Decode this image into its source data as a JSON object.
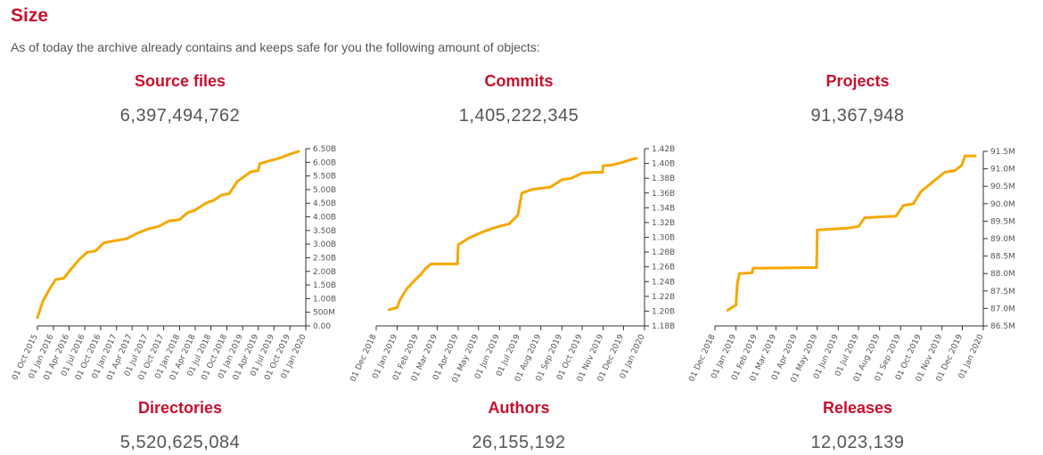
{
  "heading": "Size",
  "intro": "As of today the archive already contains and keeps safe for you the following amount of objects:",
  "colors": {
    "accent": "#c8102e",
    "line": "#f5a800",
    "text": "#555555"
  },
  "stats": [
    {
      "label": "Source files",
      "value": "6,397,494,762"
    },
    {
      "label": "Commits",
      "value": "1,405,222,345"
    },
    {
      "label": "Projects",
      "value": "91,367,948"
    },
    {
      "label": "Directories",
      "value": "5,520,625,084"
    },
    {
      "label": "Authors",
      "value": "26,155,192"
    },
    {
      "label": "Releases",
      "value": "12,023,139"
    }
  ],
  "chart_data": [
    {
      "type": "line",
      "title": "Source files",
      "xlim": [
        "2015-10-01",
        "2020-01-01"
      ],
      "ylim": [
        0,
        6500000000
      ],
      "x_ticks": [
        "01 Oct 2015",
        "01 Jan 2016",
        "01 Apr 2016",
        "01 Jul 2016",
        "01 Oct 2016",
        "01 Jan 2017",
        "01 Apr 2017",
        "01 Jul 2017",
        "01 Oct 2017",
        "01 Jan 2018",
        "01 Apr 2018",
        "01 Jul 2018",
        "01 Oct 2018",
        "01 Jan 2019",
        "01 Apr 2019",
        "01 Jul 2019",
        "01 Oct 2019",
        "01 Jan 2020"
      ],
      "y_ticks": [
        {
          "v": 0,
          "label": "0.00"
        },
        {
          "v": 500000000,
          "label": "500M"
        },
        {
          "v": 1000000000,
          "label": "1.00B"
        },
        {
          "v": 1500000000,
          "label": "1.50B"
        },
        {
          "v": 2000000000,
          "label": "2.00B"
        },
        {
          "v": 2500000000,
          "label": "2.50B"
        },
        {
          "v": 3000000000,
          "label": "3.00B"
        },
        {
          "v": 3500000000,
          "label": "3.50B"
        },
        {
          "v": 4000000000,
          "label": "4.00B"
        },
        {
          "v": 4500000000,
          "label": "4.50B"
        },
        {
          "v": 5000000000,
          "label": "5.00B"
        },
        {
          "v": 5500000000,
          "label": "5.50B"
        },
        {
          "v": 6000000000,
          "label": "6.00B"
        },
        {
          "v": 6500000000,
          "label": "6.50B"
        }
      ],
      "points": [
        [
          "2015-10-01",
          300000000
        ],
        [
          "2015-11-01",
          900000000
        ],
        [
          "2015-12-15",
          1400000000
        ],
        [
          "2016-01-15",
          1700000000
        ],
        [
          "2016-03-01",
          1750000000
        ],
        [
          "2016-04-15",
          2100000000
        ],
        [
          "2016-06-01",
          2450000000
        ],
        [
          "2016-07-15",
          2700000000
        ],
        [
          "2016-09-01",
          2750000000
        ],
        [
          "2016-10-20",
          3050000000
        ],
        [
          "2016-12-01",
          3100000000
        ],
        [
          "2017-03-01",
          3200000000
        ],
        [
          "2017-05-01",
          3400000000
        ],
        [
          "2017-07-01",
          3550000000
        ],
        [
          "2017-09-01",
          3650000000
        ],
        [
          "2017-11-01",
          3850000000
        ],
        [
          "2018-01-01",
          3900000000
        ],
        [
          "2018-02-15",
          4150000000
        ],
        [
          "2018-04-01",
          4250000000
        ],
        [
          "2018-06-01",
          4500000000
        ],
        [
          "2018-07-15",
          4600000000
        ],
        [
          "2018-09-01",
          4800000000
        ],
        [
          "2018-10-15",
          4850000000
        ],
        [
          "2018-12-01",
          5300000000
        ],
        [
          "2019-01-15",
          5500000000
        ],
        [
          "2019-02-15",
          5650000000
        ],
        [
          "2019-04-01",
          5700000000
        ],
        [
          "2019-04-10",
          5950000000
        ],
        [
          "2019-06-01",
          6050000000
        ],
        [
          "2019-08-01",
          6150000000
        ],
        [
          "2019-10-01",
          6300000000
        ],
        [
          "2019-11-20",
          6400000000
        ]
      ]
    },
    {
      "type": "line",
      "title": "Commits",
      "xlim": [
        "2018-12-01",
        "2020-01-01"
      ],
      "ylim": [
        1180000000,
        1420000000
      ],
      "x_ticks": [
        "01 Dec 2018",
        "01 Jan 2019",
        "01 Feb 2019",
        "01 Mar 2019",
        "01 Apr 2019",
        "01 May 2019",
        "01 Jun 2019",
        "01 Jul 2019",
        "01 Aug 2019",
        "01 Sep 2019",
        "01 Oct 2019",
        "01 Nov 2019",
        "01 Dec 2019",
        "01 Jan 2020"
      ],
      "y_ticks": [
        {
          "v": 1180000000,
          "label": "1.18B"
        },
        {
          "v": 1200000000,
          "label": "1.20B"
        },
        {
          "v": 1220000000,
          "label": "1.22B"
        },
        {
          "v": 1240000000,
          "label": "1.24B"
        },
        {
          "v": 1260000000,
          "label": "1.26B"
        },
        {
          "v": 1280000000,
          "label": "1.28B"
        },
        {
          "v": 1300000000,
          "label": "1.30B"
        },
        {
          "v": 1320000000,
          "label": "1.32B"
        },
        {
          "v": 1340000000,
          "label": "1.34B"
        },
        {
          "v": 1360000000,
          "label": "1.36B"
        },
        {
          "v": 1380000000,
          "label": "1.38B"
        },
        {
          "v": 1400000000,
          "label": "1.40B"
        },
        {
          "v": 1420000000,
          "label": "1.42B"
        }
      ],
      "points": [
        [
          "2018-12-20",
          1202000000
        ],
        [
          "2019-01-01",
          1205000000
        ],
        [
          "2019-01-05",
          1215000000
        ],
        [
          "2019-01-15",
          1230000000
        ],
        [
          "2019-01-25",
          1240000000
        ],
        [
          "2019-02-05",
          1250000000
        ],
        [
          "2019-02-12",
          1258000000
        ],
        [
          "2019-02-20",
          1264000000
        ],
        [
          "2019-03-31",
          1264000000
        ],
        [
          "2019-04-01",
          1290000000
        ],
        [
          "2019-04-15",
          1298000000
        ],
        [
          "2019-05-01",
          1305000000
        ],
        [
          "2019-05-15",
          1310000000
        ],
        [
          "2019-06-01",
          1315000000
        ],
        [
          "2019-06-15",
          1318000000
        ],
        [
          "2019-06-28",
          1330000000
        ],
        [
          "2019-07-04",
          1360000000
        ],
        [
          "2019-07-20",
          1365000000
        ],
        [
          "2019-08-15",
          1368000000
        ],
        [
          "2019-09-01",
          1378000000
        ],
        [
          "2019-09-15",
          1380000000
        ],
        [
          "2019-10-01",
          1387000000
        ],
        [
          "2019-10-20",
          1388000000
        ],
        [
          "2019-10-31",
          1388000000
        ],
        [
          "2019-11-01",
          1397000000
        ],
        [
          "2019-11-15",
          1398000000
        ],
        [
          "2019-12-01",
          1402000000
        ],
        [
          "2019-12-15",
          1406000000
        ],
        [
          "2019-12-20",
          1407000000
        ]
      ]
    },
    {
      "type": "line",
      "title": "Projects",
      "xlim": [
        "2018-12-01",
        "2020-01-01"
      ],
      "ylim": [
        86500000,
        91500000
      ],
      "x_ticks": [
        "01 Dec 2018",
        "01 Jan 2019",
        "01 Feb 2019",
        "01 Mar 2019",
        "01 Apr 2019",
        "01 May 2019",
        "01 Jun 2019",
        "01 Jul 2019",
        "01 Aug 2019",
        "01 Sep 2019",
        "01 Oct 2019",
        "01 Nov 2019",
        "01 Dec 2019",
        "01 Jan 2020"
      ],
      "y_ticks": [
        {
          "v": 86500000,
          "label": "86.5M"
        },
        {
          "v": 87000000,
          "label": "87.0M"
        },
        {
          "v": 87500000,
          "label": "87.5M"
        },
        {
          "v": 88000000,
          "label": "88.0M"
        },
        {
          "v": 88500000,
          "label": "88.5M"
        },
        {
          "v": 89000000,
          "label": "89.0M"
        },
        {
          "v": 89500000,
          "label": "89.5M"
        },
        {
          "v": 90000000,
          "label": "90.0M"
        },
        {
          "v": 90500000,
          "label": "90.5M"
        },
        {
          "v": 91000000,
          "label": "91.0M"
        },
        {
          "v": 91500000,
          "label": "91.5M"
        }
      ],
      "points": [
        [
          "2018-12-20",
          86950000
        ],
        [
          "2018-12-28",
          87050000
        ],
        [
          "2019-01-01",
          87100000
        ],
        [
          "2019-01-03",
          87700000
        ],
        [
          "2019-01-06",
          88000000
        ],
        [
          "2019-01-25",
          88020000
        ],
        [
          "2019-01-26",
          88150000
        ],
        [
          "2019-04-30",
          88170000
        ],
        [
          "2019-05-01",
          89250000
        ],
        [
          "2019-06-15",
          89300000
        ],
        [
          "2019-07-01",
          89350000
        ],
        [
          "2019-07-10",
          89600000
        ],
        [
          "2019-08-10",
          89630000
        ],
        [
          "2019-08-25",
          89640000
        ],
        [
          "2019-09-05",
          89950000
        ],
        [
          "2019-09-20",
          90000000
        ],
        [
          "2019-10-01",
          90350000
        ],
        [
          "2019-10-20",
          90650000
        ],
        [
          "2019-11-05",
          90900000
        ],
        [
          "2019-11-20",
          90950000
        ],
        [
          "2019-11-30",
          91100000
        ],
        [
          "2019-12-05",
          91370000
        ],
        [
          "2019-12-20",
          91370000
        ]
      ]
    }
  ]
}
